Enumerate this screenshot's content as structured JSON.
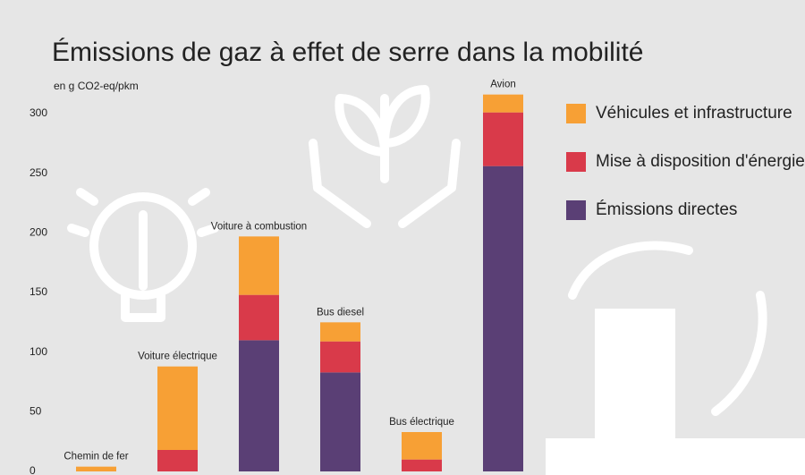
{
  "chart_data": {
    "type": "stacked-bar",
    "title": "Émissions de gaz à effet de serre dans la mobilité",
    "y_label": "en g CO2-eq/pkm",
    "categories": [
      "Chemin de fer",
      "Voiture électrique",
      "Voiture à combustion",
      "Bus diesel",
      "Bus électrique",
      "Avion"
    ],
    "series": [
      {
        "name": "Véhicules et infrastructure",
        "color": "#f7a035",
        "values": [
          4,
          70,
          49,
          16,
          23,
          15
        ]
      },
      {
        "name": "Mise à disposition d'énergie",
        "color": "#d93a4a",
        "values": [
          0,
          18,
          38,
          26,
          10,
          45
        ]
      },
      {
        "name": "Émissions directes",
        "color": "#5a3f75",
        "values": [
          0,
          0,
          110,
          83,
          0,
          256
        ]
      }
    ],
    "ylim": [
      0,
      300
    ],
    "yticks": [
      0,
      50,
      100,
      150,
      200,
      250,
      300
    ],
    "grid": false,
    "legend": "right"
  }
}
